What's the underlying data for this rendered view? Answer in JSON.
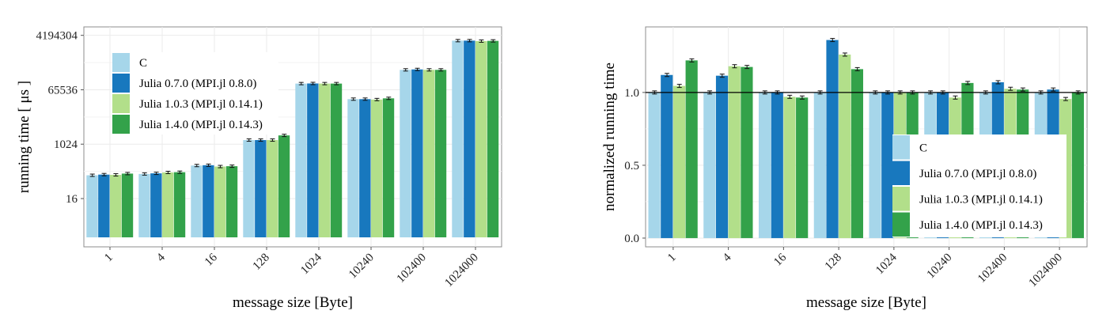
{
  "colors": {
    "C": "#a6d6ea",
    "julia070": "#1878be",
    "julia103": "#b2df8a",
    "julia140": "#33a24a",
    "grid": "#ebebeb",
    "frame": "#8c8c8c"
  },
  "chart_data": [
    {
      "type": "bar",
      "title": "",
      "xlabel": "message size [Byte]",
      "ylabel": "running time [ μs ]",
      "yscale": "log2",
      "ylim": [
        0.4,
        8000000
      ],
      "yticks": [
        16,
        1024,
        65536,
        4194304
      ],
      "ytick_labels": [
        "16",
        "1024",
        "65536",
        "4194304"
      ],
      "categories": [
        "1",
        "4",
        "16",
        "128",
        "1024",
        "10240",
        "102400",
        "1024000"
      ],
      "legend_position": "top-left",
      "series": [
        {
          "name": "C",
          "color_key": "C",
          "values": [
            95,
            105,
            200,
            1400,
            105000,
            32000,
            300000,
            2800000
          ]
        },
        {
          "name": "Julia 0.7.0 (MPI.jl 0.8.0)",
          "color_key": "julia070",
          "values": [
            100,
            110,
            205,
            1400,
            106000,
            32000,
            310000,
            2800000
          ]
        },
        {
          "name": "Julia 1.0.3 (MPI.jl 0.14.1)",
          "color_key": "julia103",
          "values": [
            98,
            118,
            185,
            1400,
            105000,
            31000,
            300000,
            2700000
          ]
        },
        {
          "name": "Julia 1.4.0 (MPI.jl 0.14.3)",
          "color_key": "julia140",
          "values": [
            108,
            120,
            190,
            2000,
            105000,
            34000,
            300000,
            2750000
          ]
        }
      ]
    },
    {
      "type": "bar",
      "title": "",
      "xlabel": "message size [Byte]",
      "ylabel": "normalized running time",
      "ylim": [
        -0.06,
        1.45
      ],
      "yticks": [
        0.0,
        0.5,
        1.0
      ],
      "ytick_labels": [
        "0.0",
        "0.5",
        "1.0"
      ],
      "reference_line": 1.0,
      "categories": [
        "1",
        "4",
        "16",
        "128",
        "1024",
        "10240",
        "102400",
        "1024000"
      ],
      "legend_position": "bottom-right",
      "series": [
        {
          "name": "C",
          "color_key": "C",
          "values": [
            1.0,
            1.0,
            1.0,
            1.0,
            1.0,
            1.0,
            1.0,
            1.0
          ]
        },
        {
          "name": "Julia 0.7.0 (MPI.jl 0.8.0)",
          "color_key": "julia070",
          "values": [
            1.12,
            1.115,
            1.0,
            1.36,
            1.0,
            1.0,
            1.07,
            1.02
          ]
        },
        {
          "name": "Julia 1.0.3 (MPI.jl 0.14.1)",
          "color_key": "julia103",
          "values": [
            1.045,
            1.18,
            0.97,
            1.26,
            1.0,
            0.965,
            1.025,
            0.955
          ]
        },
        {
          "name": "Julia 1.4.0 (MPI.jl 0.14.3)",
          "color_key": "julia140",
          "values": [
            1.22,
            1.175,
            0.965,
            1.16,
            1.0,
            1.065,
            1.02,
            1.0
          ]
        }
      ]
    }
  ]
}
